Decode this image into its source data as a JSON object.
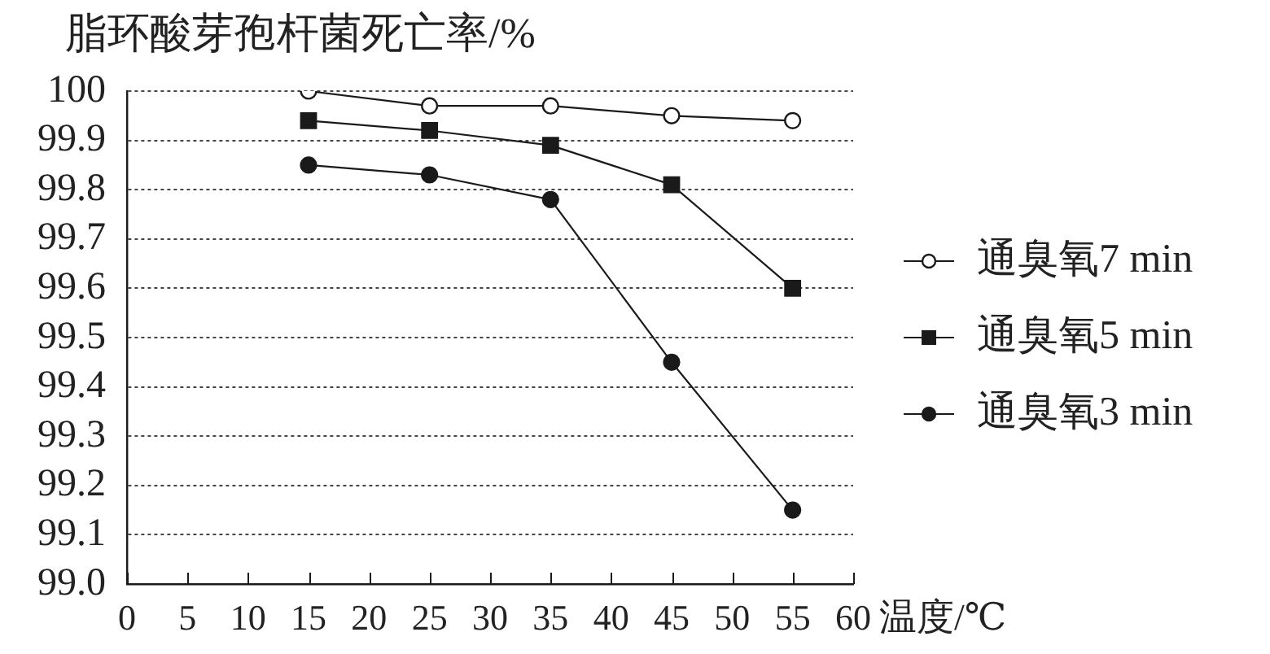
{
  "chart_data": {
    "type": "line",
    "xlabel": "温度/℃",
    "ylabel": "脂环酸芽孢杆菌死亡率/%",
    "x": [
      15,
      25,
      35,
      45,
      55
    ],
    "series": [
      {
        "name": "通臭氧7 min",
        "color": "#ffffff",
        "marker": "circle",
        "values": [
          100,
          99.97,
          99.97,
          99.95,
          99.94
        ]
      },
      {
        "name": "通臭氧5 min",
        "color": "#1a1a1a",
        "marker": "square",
        "values": [
          99.94,
          99.92,
          99.89,
          99.81,
          99.6
        ]
      },
      {
        "name": "通臭氧3 min",
        "color": "#1a1a1a",
        "marker": "circle",
        "values": [
          99.85,
          99.83,
          99.78,
          99.45,
          99.15
        ]
      }
    ],
    "xlim": [
      0,
      60
    ],
    "xticks": [
      0,
      5,
      10,
      15,
      20,
      25,
      30,
      35,
      40,
      45,
      50,
      55,
      60
    ],
    "ylim": [
      99,
      100
    ],
    "yticks": [
      {
        "value": 99,
        "label": "99.0"
      },
      99.1,
      99.2,
      99.3,
      99.4,
      99.5,
      99.6,
      99.7,
      99.8,
      99.9,
      100
    ],
    "grid": "y",
    "legend": "right"
  }
}
